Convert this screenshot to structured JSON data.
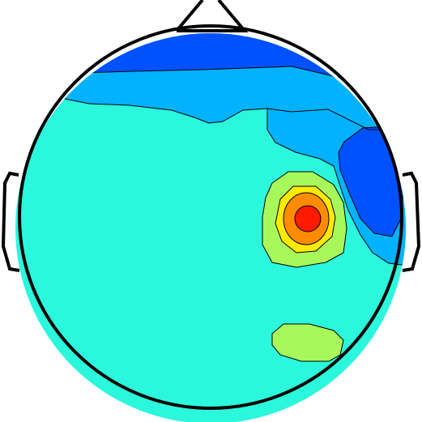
{
  "topomap": {
    "colors": {
      "background": "#ffffff",
      "outline": "#000000",
      "level_1": "#2bf7dd",
      "level_2": "#00b2ff",
      "level_3": "#0051ff",
      "level_4": "#1d3fe6",
      "light_green": "#a8f85b",
      "yellow": "#ffea00",
      "orange": "#ff8c00",
      "red": "#ff1a00"
    },
    "features": [
      "nose",
      "left-ear",
      "right-ear",
      "head-outline",
      "contour-map"
    ]
  }
}
